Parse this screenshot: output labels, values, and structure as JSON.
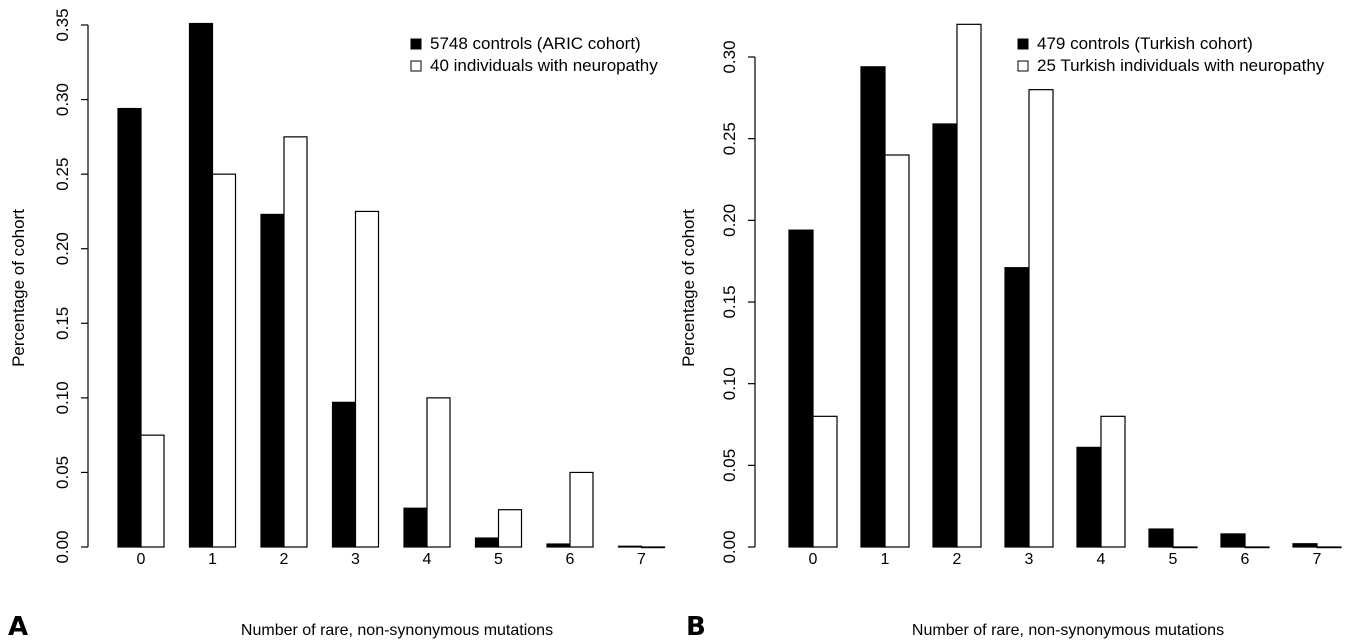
{
  "chart_data": [
    {
      "panel_label": "A",
      "type": "bar",
      "xlabel": "Number of rare, non-synonymous mutations",
      "ylabel": "Percentage of cohort",
      "categories": [
        "0",
        "1",
        "2",
        "3",
        "4",
        "5",
        "6",
        "7"
      ],
      "ylim": [
        0,
        0.35
      ],
      "yticks": [
        "0.00",
        "0.05",
        "0.10",
        "0.15",
        "0.20",
        "0.25",
        "0.30",
        "0.35"
      ],
      "legend_position": "top-right",
      "grid": false,
      "series": [
        {
          "name": "5748 controls (ARIC cohort)",
          "fill": "#000000",
          "values": [
            0.294,
            0.351,
            0.223,
            0.097,
            0.026,
            0.006,
            0.002,
            0.0005
          ]
        },
        {
          "name": "40 individuals with neuropathy",
          "fill": "#ffffff",
          "values": [
            0.075,
            0.25,
            0.275,
            0.225,
            0.1,
            0.025,
            0.05,
            0
          ]
        }
      ]
    },
    {
      "panel_label": "B",
      "type": "bar",
      "xlabel": "Number of rare, non-synonymous mutations",
      "ylabel": "Percentage of cohort",
      "categories": [
        "0",
        "1",
        "2",
        "3",
        "4",
        "5",
        "6",
        "7"
      ],
      "ylim": [
        0,
        0.32
      ],
      "yticks": [
        "0.00",
        "0.05",
        "0.10",
        "0.15",
        "0.20",
        "0.25",
        "0.30"
      ],
      "legend_position": "top-right",
      "grid": false,
      "series": [
        {
          "name": "479 controls (Turkish cohort)",
          "fill": "#000000",
          "values": [
            0.194,
            0.294,
            0.259,
            0.171,
            0.061,
            0.011,
            0.008,
            0.002
          ]
        },
        {
          "name": "25 Turkish individuals with neuropathy",
          "fill": "#ffffff",
          "values": [
            0.08,
            0.24,
            0.32,
            0.28,
            0.08,
            0,
            0,
            0
          ]
        }
      ]
    }
  ]
}
